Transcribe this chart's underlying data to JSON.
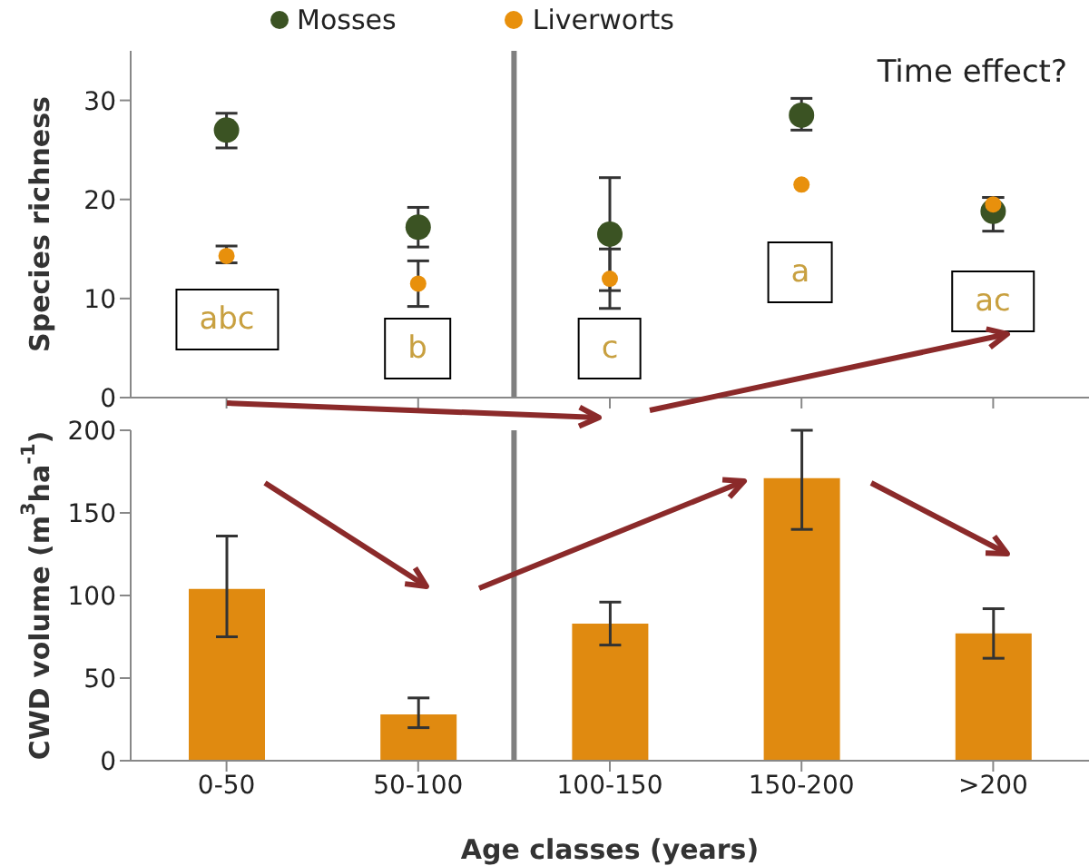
{
  "chart_data": [
    {
      "type": "scatter",
      "categories": [
        null,
        null,
        null,
        null,
        null
      ],
      "ylabel": "Species richness",
      "ylim": [
        0,
        35
      ],
      "yticks": [
        0,
        10,
        20,
        30
      ],
      "tick_labels": "y",
      "legend": "top",
      "marker": "circle",
      "grid": false,
      "series": [
        {
          "name": "Mosses",
          "color": "#3b5323",
          "values": [
            27,
            17.2,
            16.5,
            28.5,
            18.8
          ],
          "errors": [
            [
              25.2,
              28.7
            ],
            [
              15.2,
              19.2
            ],
            [
              10.8,
              22.2
            ],
            [
              27,
              30.2
            ],
            [
              16.8,
              20.2
            ]
          ]
        },
        {
          "name": "Liverworts",
          "color": "#e8900c",
          "values": [
            14.3,
            11.5,
            12,
            21.5,
            19.5
          ],
          "errors": [
            [
              13.6,
              15.3
            ],
            [
              9.2,
              13.8
            ],
            [
              9,
              15
            ],
            null,
            [
              19,
              20.2
            ]
          ]
        }
      ],
      "annotations": [
        "Time effect?",
        "abc",
        "b",
        "c",
        "a",
        "ac"
      ]
    },
    {
      "type": "bar",
      "categories": [
        "0-50",
        "50-100",
        "100-150",
        "150-200",
        ">200"
      ],
      "xlabel": "Age classes (years)",
      "ylabel": "CWD volume (m$^{3}$ha$^{-1}$)",
      "ylim": [
        0,
        200
      ],
      "yticks": [
        0,
        50,
        100,
        150,
        200
      ],
      "grid": false,
      "series": [
        {
          "color": "#e08a10",
          "values": [
            104,
            28,
            83,
            171,
            77
          ],
          "errors": [
            [
              75,
              136
            ],
            [
              20,
              38
            ],
            [
              70,
              96
            ],
            [
              140,
              200
            ],
            [
              62,
              92
            ]
          ]
        }
      ]
    }
  ]
}
